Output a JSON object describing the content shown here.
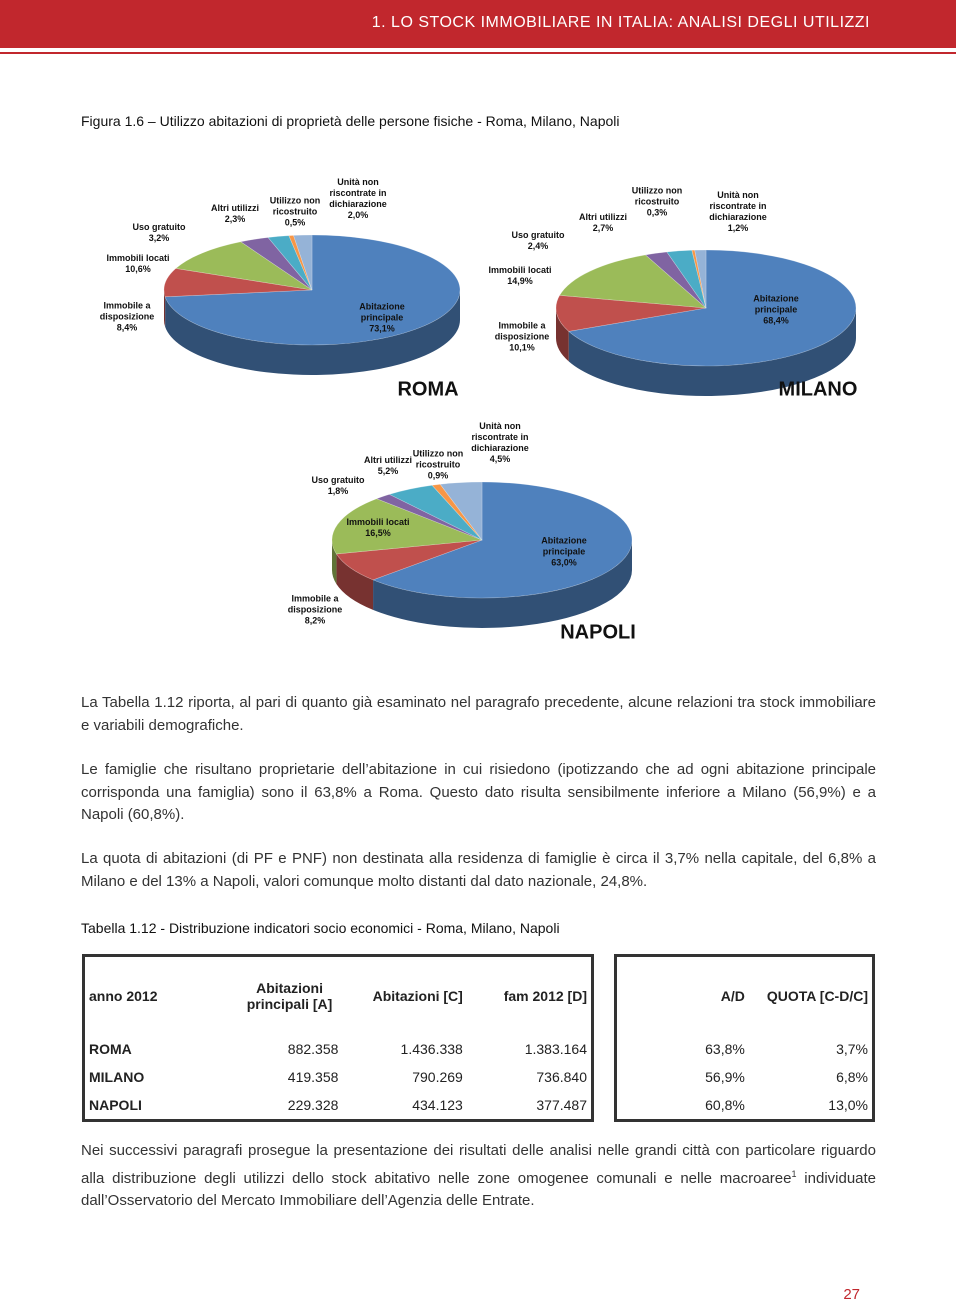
{
  "header": {
    "title": "1. LO STOCK IMMOBILIARE IN ITALIA: ANALISI DEGLI UTILIZZI"
  },
  "figure": {
    "caption": "Figura 1.6 – Utilizzo abitazioni di proprietà delle persone fisiche - Roma, Milano, Napoli"
  },
  "chart_data": [
    {
      "type": "pie",
      "title": "ROMA",
      "categories": [
        "Abitazione principale",
        "Immobile a disposizione",
        "Immobili locati",
        "Uso gratuito",
        "Altri utilizzi",
        "Utilizzo non ricostruito",
        "Unità non riscontrate in dichiarazione"
      ],
      "values": [
        73.1,
        8.4,
        10.6,
        3.2,
        2.3,
        0.5,
        2.0
      ],
      "value_labels": [
        "73,1%",
        "8,4%",
        "10,6%",
        "3,2%",
        "2,3%",
        "0,5%",
        "2,0%"
      ],
      "colors": [
        "#4f81bd",
        "#c0504d",
        "#9bbb59",
        "#8064a2",
        "#4bacc6",
        "#f79646",
        "#95b3d7"
      ]
    },
    {
      "type": "pie",
      "title": "MILANO",
      "categories": [
        "Abitazione principale",
        "Immobile a disposizione",
        "Immobili locati",
        "Uso gratuito",
        "Altri utilizzi",
        "Utilizzo non ricostruito",
        "Unità non riscontrate in dichiarazione"
      ],
      "values": [
        68.4,
        10.1,
        14.9,
        2.4,
        2.7,
        0.3,
        1.2
      ],
      "value_labels": [
        "68,4%",
        "10,1%",
        "14,9%",
        "2,4%",
        "2,7%",
        "0,3%",
        "1,2%"
      ],
      "colors": [
        "#4f81bd",
        "#c0504d",
        "#9bbb59",
        "#8064a2",
        "#4bacc6",
        "#f79646",
        "#95b3d7"
      ]
    },
    {
      "type": "pie",
      "title": "NAPOLI",
      "categories": [
        "Abitazione principale",
        "Immobile a disposizione",
        "Immobili locati",
        "Uso gratuito",
        "Altri utilizzi",
        "Utilizzo non ricostruito",
        "Unità non riscontrate in dichiarazione"
      ],
      "values": [
        63.0,
        8.2,
        16.5,
        1.8,
        5.2,
        0.9,
        4.5
      ],
      "value_labels": [
        "63,0%",
        "8,2%",
        "16,5%",
        "1,8%",
        "5,2%",
        "0,9%",
        "4,5%"
      ],
      "colors": [
        "#4f81bd",
        "#c0504d",
        "#9bbb59",
        "#8064a2",
        "#4bacc6",
        "#f79646",
        "#95b3d7"
      ]
    }
  ],
  "paragraphs": [
    "La Tabella 1.12 riporta, al pari di quanto già esaminato nel paragrafo precedente, alcune relazioni tra stock immobiliare e variabili demografiche.",
    "Le famiglie che risultano proprietarie dell’abitazione in cui risiedono (ipotizzando che ad ogni abitazione principale corrisponda una famiglia) sono il 63,8% a Roma. Questo dato risulta sensibilmente inferiore a Milano (56,9%) e a Napoli (60,8%).",
    "La quota di abitazioni (di PF e PNF) non destinata alla residenza di famiglie è circa il 3,7% nella capitale, del 6,8% a Milano e del 13% a Napoli, valori comunque molto distanti dal dato nazionale, 24,8%."
  ],
  "table": {
    "caption": "Tabella 1.12 - Distribuzione indicatori socio economici - Roma, Milano, Napoli",
    "header": [
      "anno 2012",
      "Abitazioni principali [A]",
      "Abitazioni [C]",
      "fam 2012 [D]",
      "A/D",
      "QUOTA [C-D/C]"
    ],
    "rows": [
      [
        "ROMA",
        "882.358",
        "1.436.338",
        "1.383.164",
        "63,8%",
        "3,7%"
      ],
      [
        "MILANO",
        "419.358",
        "790.269",
        "736.840",
        "56,9%",
        "6,8%"
      ],
      [
        "NAPOLI",
        "229.328",
        "434.123",
        "377.487",
        "60,8%",
        "13,0%"
      ]
    ]
  },
  "closing": {
    "text": "Nei successivi paragrafi prosegue la presentazione dei risultati delle analisi nelle grandi città con particolare riguardo alla distribuzione degli utilizzi dello stock abitativo nelle zone omogenee comunali e nelle macroaree",
    "footnote_ref": "1",
    "text_end": "individuate dall’Osservatorio del Mercato Immobiliare dell’Agenzia delle Entrate."
  },
  "page_number": "27"
}
